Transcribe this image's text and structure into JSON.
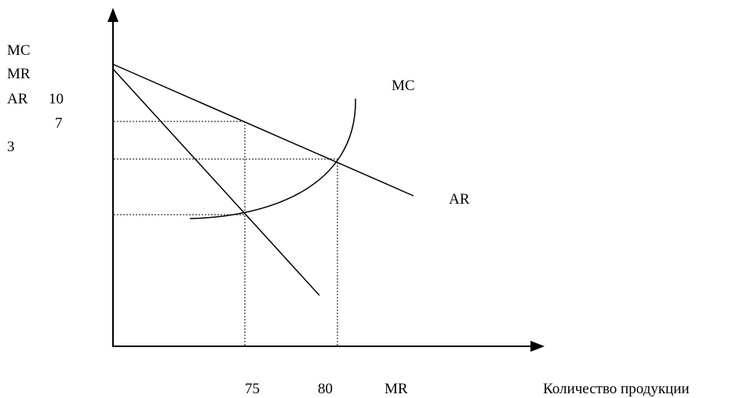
{
  "y_axis_labels": {
    "line1": "MC",
    "line2": "MR",
    "line3": "AR",
    "value_10": "10",
    "value_7": "7",
    "value_3": "3"
  },
  "curve_labels": {
    "mc": "MC",
    "ar": "AR"
  },
  "x_axis_labels": {
    "value_75": "75",
    "value_80": "80",
    "mr": "MR",
    "title": "Количество продукции"
  }
}
